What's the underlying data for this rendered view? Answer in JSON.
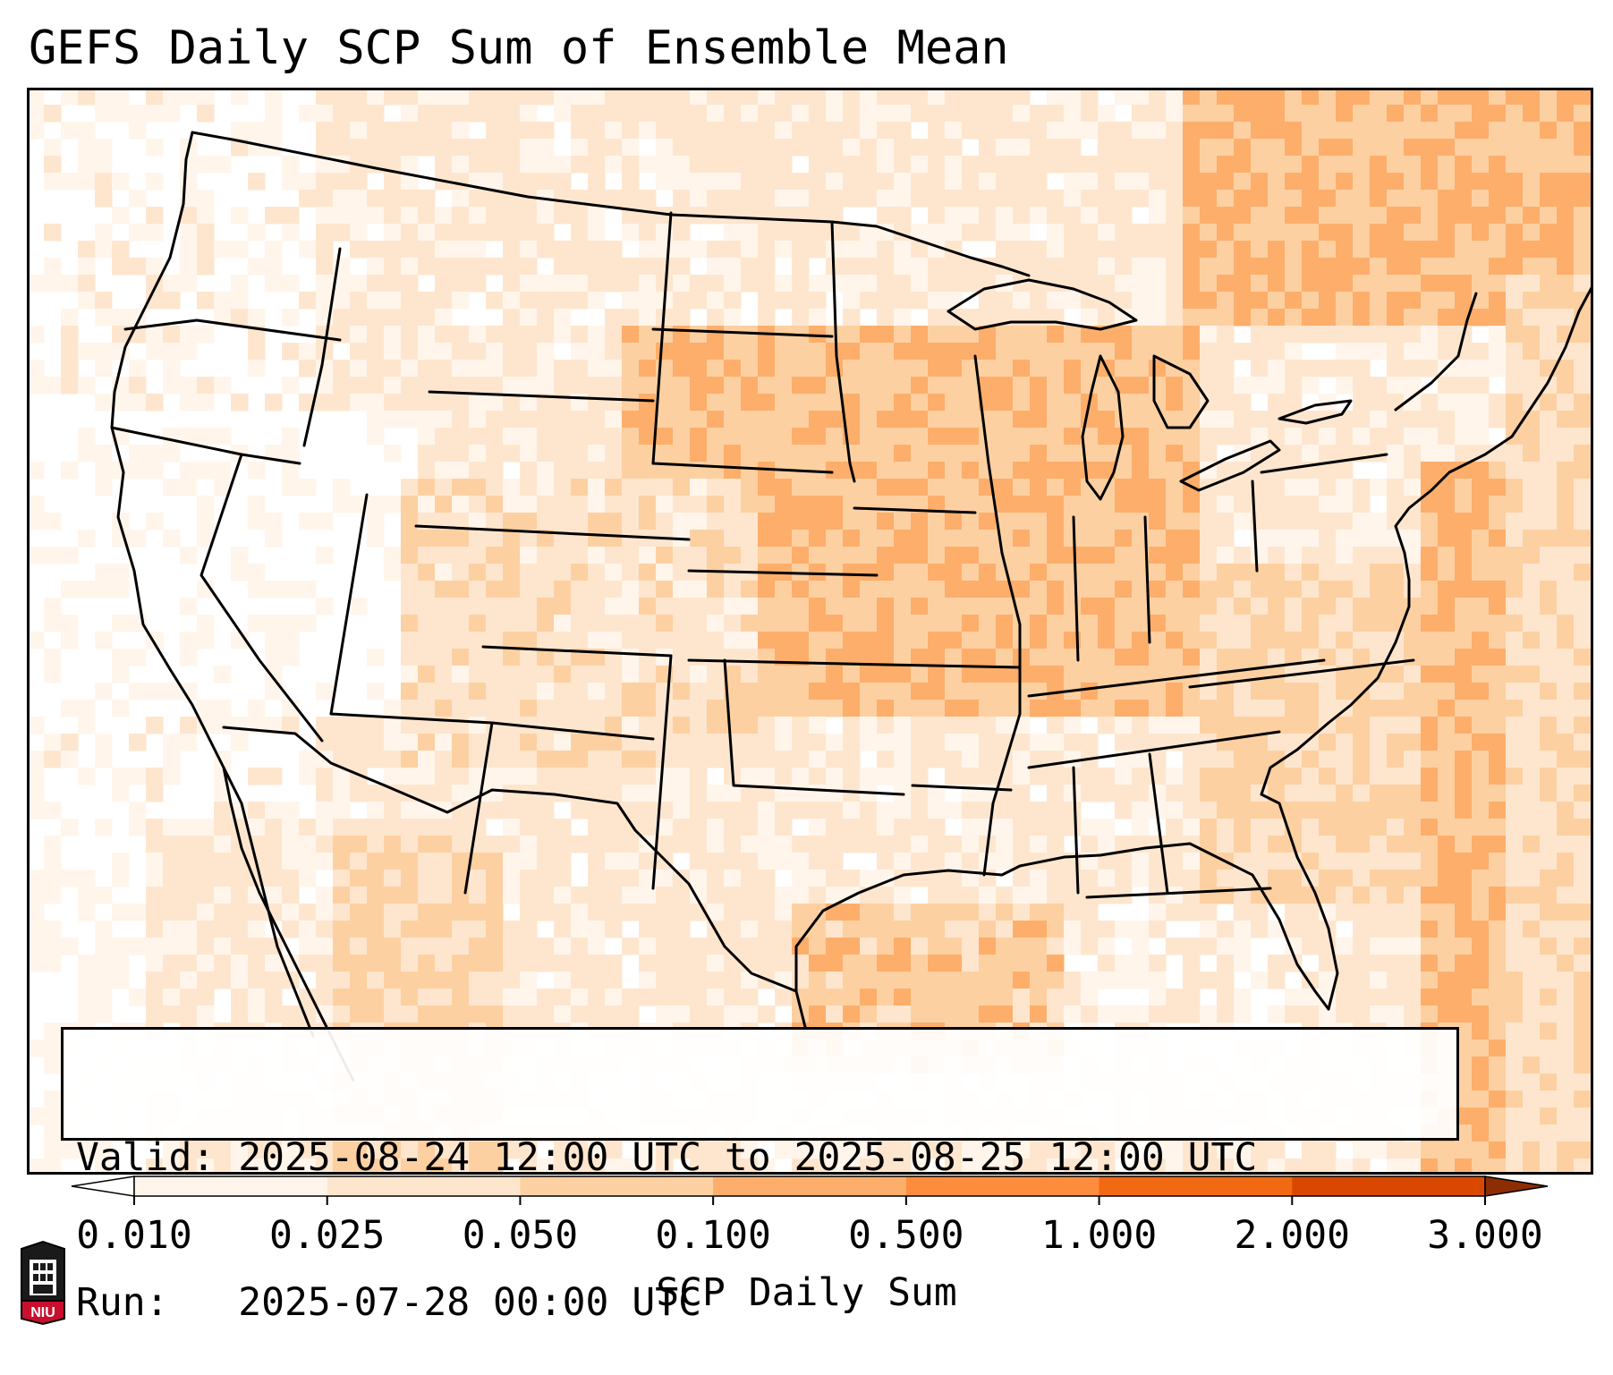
{
  "title": "GEFS Daily SCP Sum of Ensemble Mean",
  "info": {
    "valid_label": "Valid:",
    "valid_value": "2025-08-24 12:00 UTC to 2025-08-25 12:00 UTC",
    "run_label": "Run:",
    "run_value": "2025-07-28 00:00 UTC"
  },
  "colorbar": {
    "label": "SCP Daily Sum",
    "ticks": [
      "0.010",
      "0.025",
      "0.050",
      "0.100",
      "0.500",
      "1.000",
      "2.000",
      "3.000"
    ],
    "colors": [
      "#fff5eb",
      "#fee6ce",
      "#fdd0a2",
      "#fdae6b",
      "#fd8d3c",
      "#f16913",
      "#d94801"
    ],
    "under_color": "#ffffff",
    "over_color": "#8c2d04",
    "extend": "both"
  },
  "logo": {
    "text": "NIU",
    "accent": "#c8102e"
  },
  "map": {
    "projection": "Lambert conformal, contiguous United States",
    "field": "SCP daily sum, ensemble mean"
  }
}
